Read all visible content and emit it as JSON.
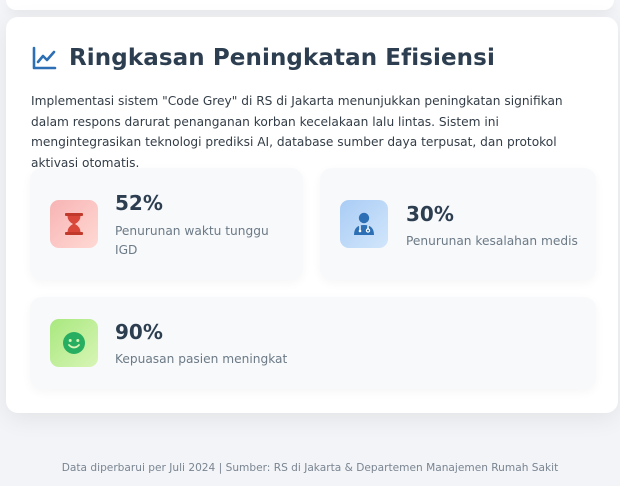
{
  "summary": {
    "title": "Ringkasan Peningkatan Efisiensi",
    "title_icon": "chart-line-icon",
    "description": "Implementasi sistem \"Code Grey\" di RS di Jakarta menunjukkan peningkatan signifikan dalam respons darurat penanganan korban kecelakaan lalu lintas. Sistem ini mengintegrasikan teknologi prediksi AI, database sumber daya terpusat, dan protokol aktivasi otomatis.",
    "stats": [
      {
        "value": "52%",
        "label": "Penurunan waktu tunggu IGD",
        "icon": "hourglass-icon",
        "color": "#c0392b"
      },
      {
        "value": "30%",
        "label": "Penurunan kesalahan medis",
        "icon": "doctor-icon",
        "color": "#2c6fb5"
      },
      {
        "value": "90%",
        "label": "Kepuasan pasien meningkat",
        "icon": "smile-icon",
        "color": "#2ecc71"
      }
    ]
  },
  "footer": {
    "text": "Data diperbarui per Juli 2024 | Sumber: RS di Jakarta & Departemen Manajemen Rumah Sakit"
  },
  "colors": {
    "accent": "#2c6fb5",
    "heading": "#2c3e50",
    "muted": "#6c7a86"
  }
}
